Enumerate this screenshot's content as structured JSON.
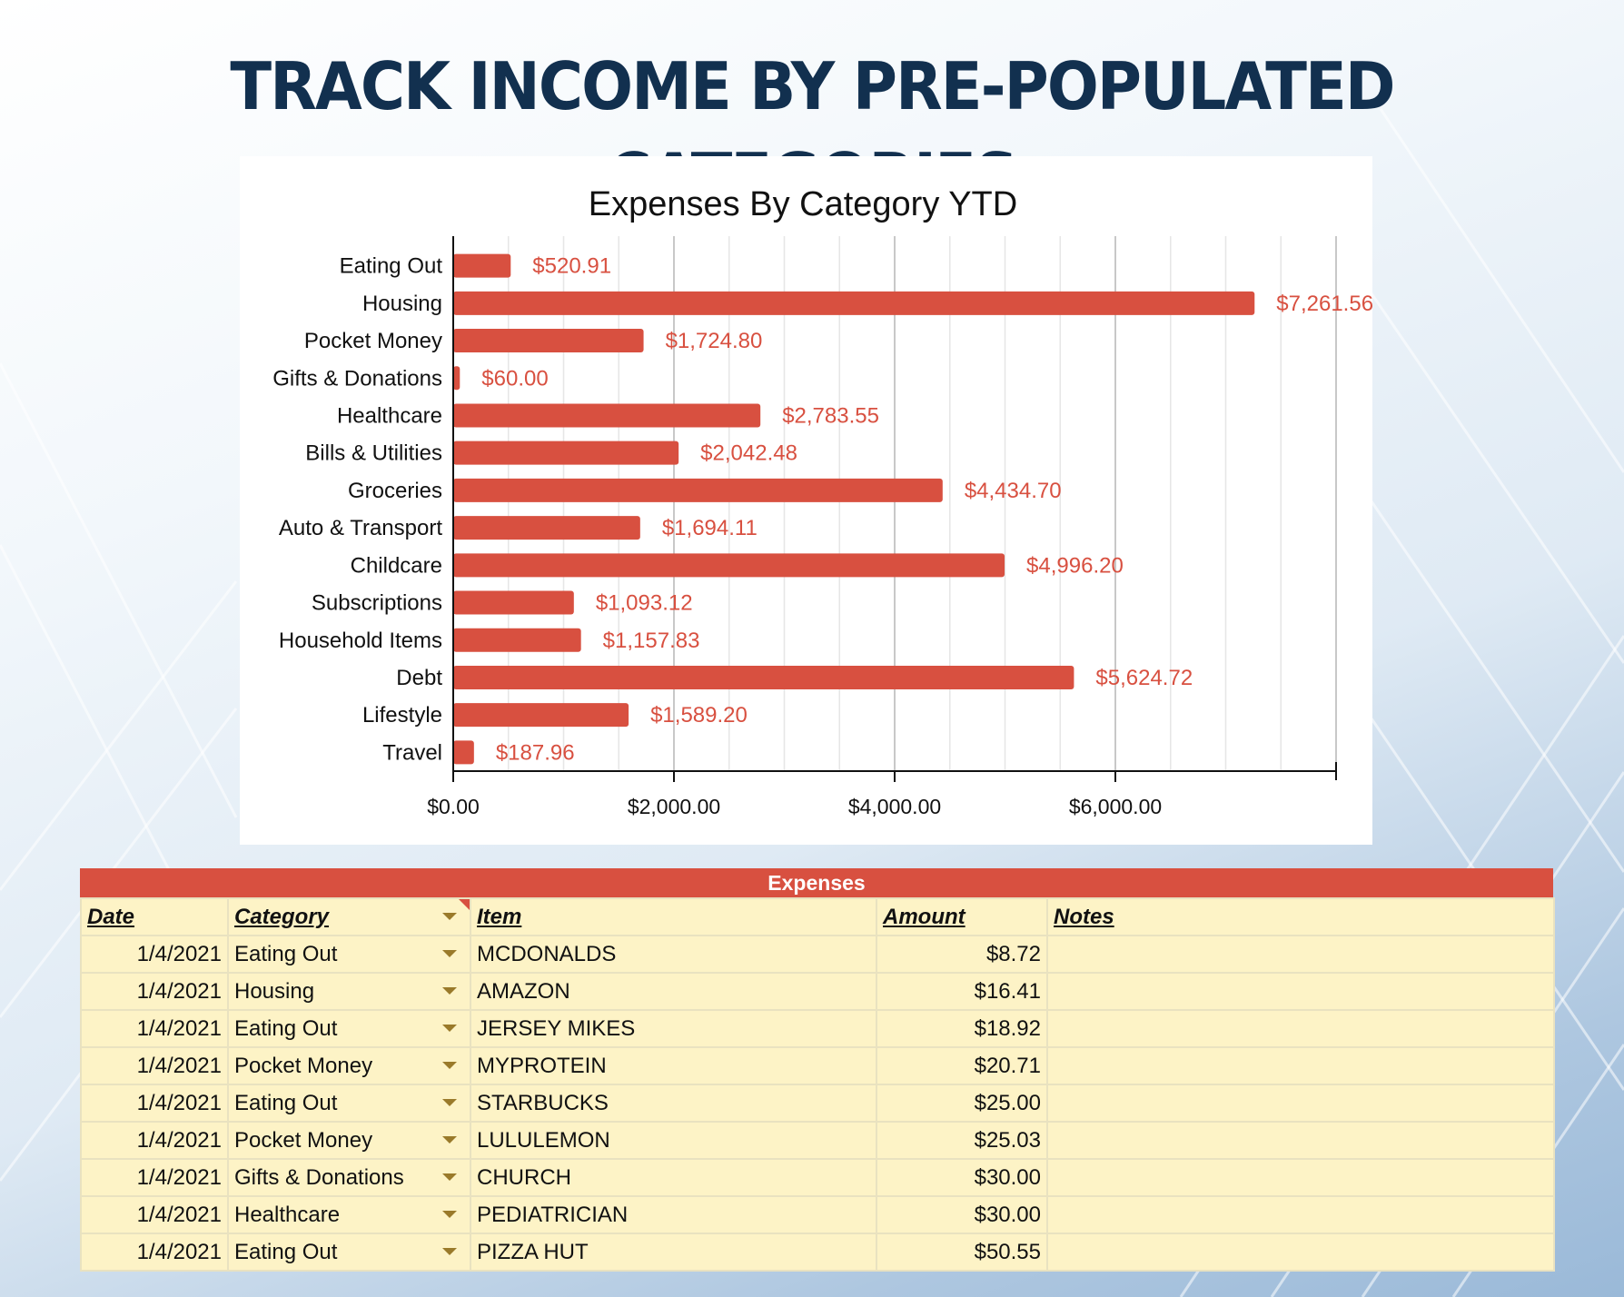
{
  "headline": "TRACK INCOME BY PRE-POPULATED CATEGORIES",
  "colors": {
    "bar": "#d85040",
    "value_label": "#d85040",
    "headline": "#12304f",
    "table_header": "#d85040",
    "table_bg": "#fdf3c6"
  },
  "chart_data": {
    "type": "bar",
    "orientation": "horizontal",
    "title": "Expenses By Category YTD",
    "categories": [
      "Eating Out",
      "Housing",
      "Pocket Money",
      "Gifts & Donations",
      "Healthcare",
      "Bills & Utilities",
      "Groceries",
      "Auto & Transport",
      "Childcare",
      "Subscriptions",
      "Household Items",
      "Debt",
      "Lifestyle",
      "Travel"
    ],
    "values": [
      520.91,
      7261.56,
      1724.8,
      60.0,
      2783.55,
      2042.48,
      4434.7,
      1694.11,
      4996.2,
      1093.12,
      1157.83,
      5624.72,
      1589.2,
      187.96
    ],
    "value_labels": [
      "$520.91",
      "$7,261.56",
      "$1,724.80",
      "$60.00",
      "$2,783.55",
      "$2,042.48",
      "$4,434.70",
      "$1,694.11",
      "$4,996.20",
      "$1,093.12",
      "$1,157.83",
      "$5,624.72",
      "$1,589.20",
      "$187.96"
    ],
    "xlim": [
      0,
      8000
    ],
    "x_ticks": [
      0,
      2000,
      4000,
      6000
    ],
    "x_tick_labels": [
      "$0.00",
      "$2,000.00",
      "$4,000.00",
      "$6,000.00"
    ],
    "xlabel": "",
    "ylabel": "",
    "grid": true,
    "legend": "none"
  },
  "table": {
    "title": "Expenses",
    "columns": [
      "Date",
      "Category",
      "Item",
      "Amount",
      "Notes"
    ],
    "rows": [
      {
        "date": "1/4/2021",
        "category": "Eating Out",
        "item": "MCDONALDS",
        "amount": "$8.72",
        "notes": ""
      },
      {
        "date": "1/4/2021",
        "category": "Housing",
        "item": "AMAZON",
        "amount": "$16.41",
        "notes": ""
      },
      {
        "date": "1/4/2021",
        "category": "Eating Out",
        "item": "JERSEY MIKES",
        "amount": "$18.92",
        "notes": ""
      },
      {
        "date": "1/4/2021",
        "category": "Pocket Money",
        "item": "MYPROTEIN",
        "amount": "$20.71",
        "notes": ""
      },
      {
        "date": "1/4/2021",
        "category": "Eating Out",
        "item": "STARBUCKS",
        "amount": "$25.00",
        "notes": ""
      },
      {
        "date": "1/4/2021",
        "category": "Pocket Money",
        "item": "LULULEMON",
        "amount": "$25.03",
        "notes": ""
      },
      {
        "date": "1/4/2021",
        "category": "Gifts & Donations",
        "item": "CHURCH",
        "amount": "$30.00",
        "notes": ""
      },
      {
        "date": "1/4/2021",
        "category": "Healthcare",
        "item": "PEDIATRICIAN",
        "amount": "$30.00",
        "notes": ""
      },
      {
        "date": "1/4/2021",
        "category": "Eating Out",
        "item": "PIZZA HUT",
        "amount": "$50.55",
        "notes": ""
      }
    ]
  }
}
